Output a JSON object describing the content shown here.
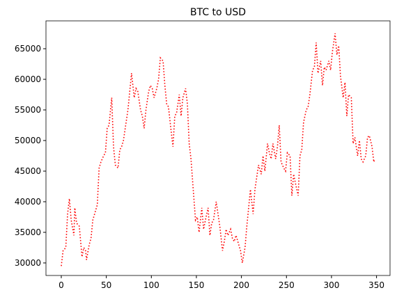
{
  "chart_data": {
    "type": "line",
    "title": "BTC to USD",
    "x": [
      0,
      2,
      5,
      7,
      9,
      11,
      14,
      15,
      17,
      20,
      23,
      25,
      27,
      28,
      31,
      33,
      35,
      38,
      40,
      42,
      44,
      47,
      49,
      51,
      53,
      56,
      58,
      60,
      63,
      65,
      67,
      69,
      72,
      74,
      76,
      78,
      81,
      83,
      85,
      88,
      90,
      92,
      94,
      97,
      99,
      101,
      103,
      106,
      108,
      110,
      113,
      115,
      117,
      119,
      122,
      124,
      126,
      128,
      131,
      133,
      135,
      138,
      140,
      142,
      144,
      147,
      149,
      151,
      153,
      156,
      158,
      160,
      163,
      165,
      167,
      169,
      172,
      174,
      176,
      179,
      181,
      183,
      185,
      188,
      190,
      192,
      194,
      197,
      199,
      201,
      204,
      206,
      208,
      210,
      213,
      215,
      217,
      219,
      222,
      224,
      226,
      229,
      231,
      233,
      235,
      238,
      240,
      242,
      244,
      247,
      249,
      251,
      254,
      256,
      258,
      260,
      263,
      265,
      267,
      269,
      272,
      274,
      276,
      279,
      281,
      283,
      285,
      288,
      290,
      292,
      294,
      297,
      299,
      301,
      304,
      306,
      308,
      310,
      313,
      315,
      317,
      319,
      322,
      324,
      326,
      329,
      331,
      333,
      335,
      338,
      340,
      342,
      345,
      347,
      348
    ],
    "values": [
      29500,
      32000,
      32500,
      38000,
      40500,
      37000,
      34500,
      39000,
      36500,
      36000,
      31000,
      32500,
      32000,
      30500,
      33000,
      34000,
      37000,
      38500,
      39500,
      45500,
      46500,
      47500,
      48000,
      52000,
      52500,
      57000,
      49000,
      46000,
      45500,
      48500,
      49000,
      50000,
      53000,
      55000,
      58000,
      61000,
      57000,
      58500,
      58000,
      55000,
      54000,
      52000,
      55000,
      58000,
      59000,
      58500,
      57000,
      58500,
      60000,
      63500,
      63000,
      59000,
      56000,
      55500,
      51500,
      49000,
      54000,
      54500,
      57500,
      54000,
      57000,
      58500,
      56000,
      49500,
      47000,
      41000,
      37000,
      37500,
      35000,
      39000,
      35500,
      37000,
      39000,
      34500,
      36500,
      37000,
      40000,
      38000,
      36000,
      32000,
      33500,
      35500,
      34500,
      35500,
      34000,
      33500,
      34500,
      33000,
      32000,
      30000,
      32500,
      36000,
      39000,
      42000,
      38000,
      42000,
      44000,
      46000,
      44500,
      47500,
      45000,
      49500,
      48000,
      47000,
      49500,
      47000,
      49000,
      52500,
      46500,
      45500,
      45000,
      48000,
      47500,
      41000,
      44500,
      43000,
      41000,
      47500,
      48500,
      53000,
      55000,
      55500,
      57500,
      61500,
      62000,
      66000,
      61000,
      63000,
      59000,
      62000,
      61500,
      63000,
      61500,
      64500,
      67500,
      64000,
      65500,
      60500,
      57000,
      59500,
      54000,
      57500,
      57000,
      49500,
      50500,
      47500,
      50000,
      47000,
      46500,
      47500,
      50500,
      50800,
      49000,
      46500,
      47000
    ],
    "color": "#ff0000",
    "line_style": "dotted",
    "xlim": [
      -17,
      365
    ],
    "xticks": [
      0,
      50,
      100,
      150,
      200,
      250,
      300,
      350
    ],
    "ylim": [
      27950,
      69550
    ],
    "yticks": [
      30000,
      35000,
      40000,
      45000,
      50000,
      55000,
      60000,
      65000
    ],
    "grid": false
  }
}
